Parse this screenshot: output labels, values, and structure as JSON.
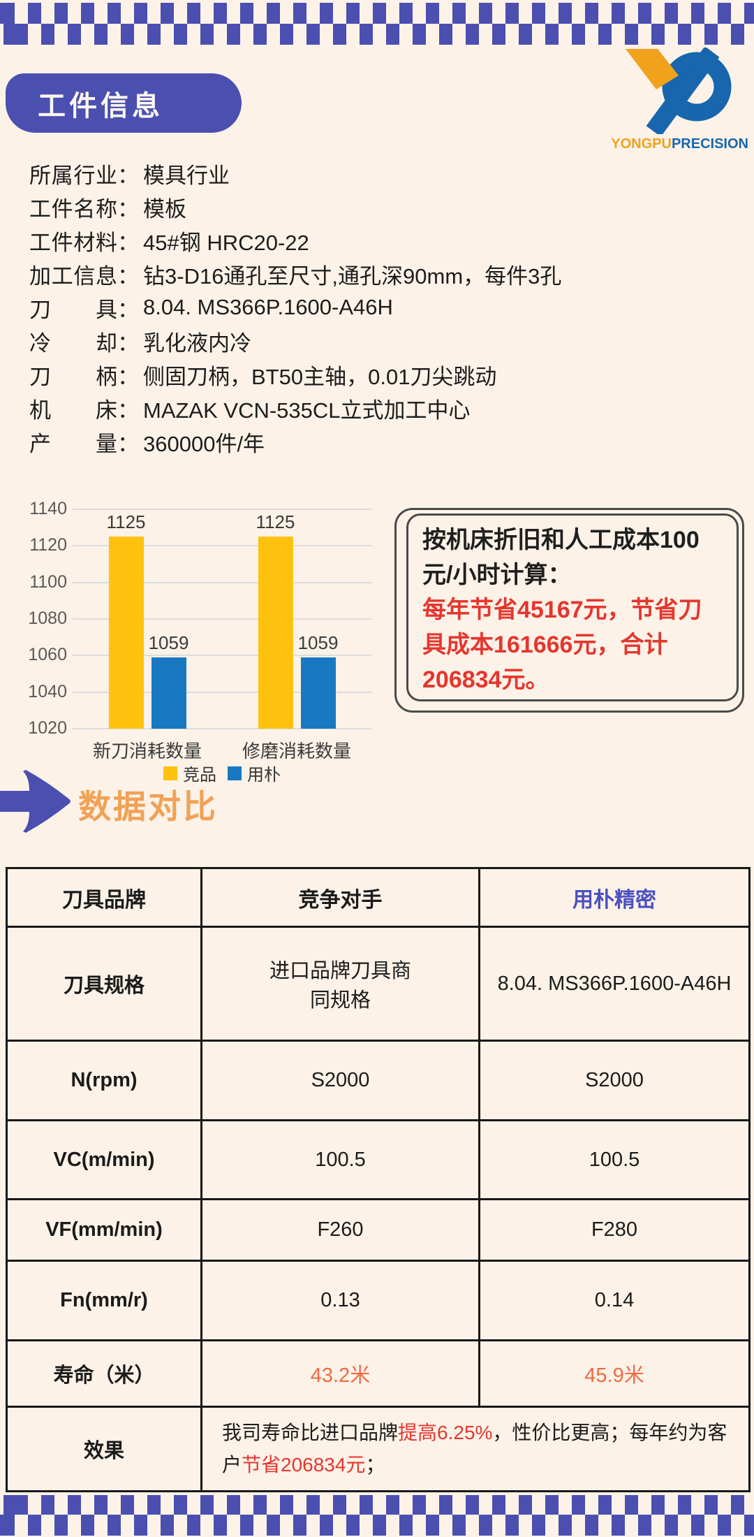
{
  "colors": {
    "background": "#FCF2E8",
    "accent_blue": "#4A4FB0",
    "brand_violet": "#4B50C0",
    "heading_orange": "#F0A255",
    "alert_red": "#E5362E",
    "life_orange_red": "#EE6A44",
    "bar_yellow": "#FEC20E",
    "bar_blue": "#1879C2",
    "logo_yellow": "#F0A21C",
    "logo_blue": "#1766AE"
  },
  "header": {
    "title": "工件信息"
  },
  "logo": {
    "brand_first": "YONGPU",
    "brand_second": "PRECISION"
  },
  "info": {
    "items": [
      {
        "label": "所属行业",
        "value": "模具行业"
      },
      {
        "label": "工件名称",
        "value": "模板"
      },
      {
        "label": "工件材料",
        "value": "45#钢 HRC20-22"
      },
      {
        "label": "加工信息",
        "value": "钻3-D16通孔至尺寸,通孔深90mm，每件3孔"
      },
      {
        "label": "刀具",
        "value": "8.04. MS366P.1600-A46H"
      },
      {
        "label": "冷却",
        "value": "乳化液内冷"
      },
      {
        "label": "刀柄",
        "value": "侧固刀柄，BT50主轴，0.01刀尖跳动"
      },
      {
        "label": "机床",
        "value": "MAZAK VCN-535CL立式加工中心"
      },
      {
        "label": "产量",
        "value": "360000件/年"
      }
    ]
  },
  "chart_data": {
    "type": "bar",
    "categories": [
      "新刀消耗数量",
      "修磨消耗数量"
    ],
    "series": [
      {
        "name": "竞品",
        "color": "#FEC20E",
        "values": [
          1125,
          1125
        ]
      },
      {
        "name": "用朴",
        "color": "#1879C2",
        "values": [
          1059,
          1059
        ]
      }
    ],
    "title": "",
    "xlabel": "",
    "ylabel": "",
    "ylim": [
      1020,
      1140
    ],
    "yticks": [
      1020,
      1040,
      1060,
      1080,
      1100,
      1120,
      1140
    ],
    "grid": true,
    "legend_position": "bottom"
  },
  "savings_note": {
    "premise": "按机床折旧和人工成本100元/小时计算：",
    "highlight": "每年节省45167元，节省刀具成本161666元，合计206834元。"
  },
  "section": {
    "title": "数据对比"
  },
  "table": {
    "headers": [
      {
        "text": "刀具品牌",
        "accent": false
      },
      {
        "text": "竞争对手",
        "accent": false
      },
      {
        "text": "用朴精密",
        "accent": true
      }
    ],
    "rows": [
      {
        "label": "刀具规格",
        "competitor": [
          "进口品牌刀具商",
          "同规格"
        ],
        "yongpu": "8.04. MS366P.1600-A46H",
        "highlight": false
      },
      {
        "label": "N(rpm)",
        "competitor": "S2000",
        "yongpu": "S2000",
        "highlight": false
      },
      {
        "label": "VC(m/min)",
        "competitor": "100.5",
        "yongpu": "100.5",
        "highlight": false
      },
      {
        "label": "VF(mm/min)",
        "competitor": "F260",
        "yongpu": "F280",
        "highlight": false
      },
      {
        "label": "Fn(mm/r)",
        "competitor": "0.13",
        "yongpu": "0.14",
        "highlight": false
      },
      {
        "label": "寿命（米）",
        "competitor": "43.2米",
        "yongpu": "45.9米",
        "highlight": true
      }
    ],
    "effect_row": {
      "label": "效果",
      "segments": [
        {
          "text": "我司寿命比进口品牌",
          "red": false
        },
        {
          "text": "提高6.25%",
          "red": true
        },
        {
          "text": "，性价比更高；每年约为客户",
          "red": false
        },
        {
          "text": "节省206834元",
          "red": true
        },
        {
          "text": "；",
          "red": false
        }
      ]
    }
  }
}
